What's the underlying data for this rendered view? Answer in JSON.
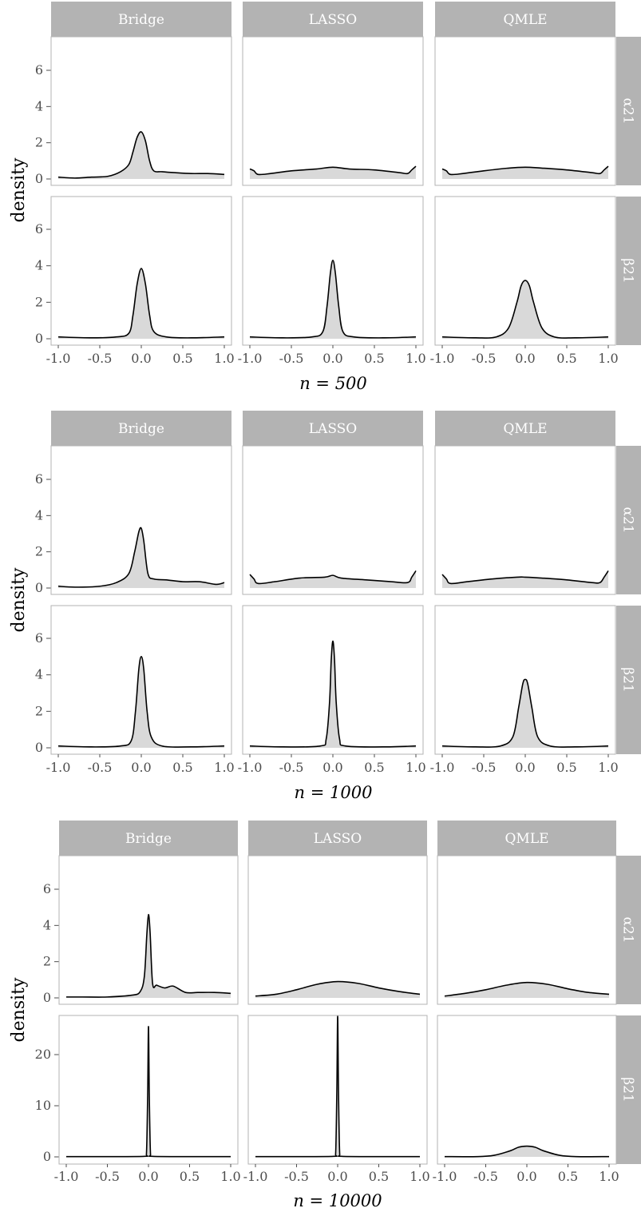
{
  "chart_data": [
    {
      "type": "area",
      "title": "",
      "xlabel": "n = 500",
      "ylabel": "density",
      "columns": [
        "Bridge",
        "LASSO",
        "QMLE"
      ],
      "rows": [
        "α21",
        "β21"
      ],
      "xlim": [
        -1.0,
        1.0
      ],
      "xticks": [
        "-1.0",
        "-0.5",
        "0.0",
        "0.5",
        "1.0"
      ],
      "row_ylims": [
        [
          0,
          7.8
        ],
        [
          0,
          7.8
        ]
      ],
      "row_yticks": [
        [
          "0",
          "2",
          "4",
          "6"
        ],
        [
          "0",
          "2",
          "4",
          "6"
        ]
      ],
      "panels": [
        {
          "column": "Bridge",
          "row": "α21",
          "x": [
            -1,
            -0.8,
            -0.6,
            -0.4,
            -0.25,
            -0.15,
            -0.1,
            -0.05,
            0,
            0.05,
            0.1,
            0.15,
            0.25,
            0.4,
            0.6,
            0.8,
            1
          ],
          "y": [
            0.1,
            0.05,
            0.1,
            0.15,
            0.4,
            0.8,
            1.5,
            2.3,
            2.6,
            2.1,
            1.0,
            0.45,
            0.4,
            0.35,
            0.3,
            0.3,
            0.25
          ]
        },
        {
          "column": "LASSO",
          "row": "α21",
          "x": [
            -1,
            -0.95,
            -0.9,
            -0.75,
            -0.5,
            -0.2,
            0,
            0.2,
            0.5,
            0.8,
            0.9,
            0.95,
            1
          ],
          "y": [
            0.55,
            0.45,
            0.25,
            0.3,
            0.45,
            0.55,
            0.65,
            0.55,
            0.5,
            0.35,
            0.3,
            0.5,
            0.7
          ]
        },
        {
          "column": "QMLE",
          "row": "α21",
          "x": [
            -1,
            -0.95,
            -0.9,
            -0.75,
            -0.5,
            -0.2,
            0,
            0.2,
            0.5,
            0.8,
            0.9,
            0.95,
            1
          ],
          "y": [
            0.55,
            0.45,
            0.25,
            0.3,
            0.45,
            0.6,
            0.65,
            0.6,
            0.5,
            0.35,
            0.3,
            0.5,
            0.7
          ]
        },
        {
          "column": "Bridge",
          "row": "β21",
          "x": [
            -1,
            -0.6,
            -0.3,
            -0.15,
            -0.1,
            -0.05,
            0,
            0.05,
            0.1,
            0.15,
            0.3,
            0.6,
            1
          ],
          "y": [
            0.1,
            0.05,
            0.1,
            0.3,
            1.3,
            3.0,
            3.85,
            3.0,
            1.3,
            0.4,
            0.1,
            0.05,
            0.1
          ]
        },
        {
          "column": "LASSO",
          "row": "β21",
          "x": [
            -1,
            -0.6,
            -0.25,
            -0.12,
            -0.07,
            -0.03,
            0,
            0.03,
            0.07,
            0.12,
            0.25,
            0.6,
            1
          ],
          "y": [
            0.1,
            0.05,
            0.1,
            0.4,
            1.8,
            3.6,
            4.3,
            3.6,
            1.8,
            0.4,
            0.1,
            0.05,
            0.1
          ]
        },
        {
          "column": "QMLE",
          "row": "β21",
          "x": [
            -1,
            -0.6,
            -0.35,
            -0.2,
            -0.1,
            -0.05,
            0,
            0.05,
            0.1,
            0.2,
            0.35,
            0.6,
            1
          ],
          "y": [
            0.1,
            0.05,
            0.1,
            0.6,
            2.0,
            2.9,
            3.2,
            2.9,
            2.0,
            0.6,
            0.1,
            0.05,
            0.1
          ]
        }
      ]
    },
    {
      "type": "area",
      "title": "",
      "xlabel": "n = 1000",
      "ylabel": "density",
      "columns": [
        "Bridge",
        "LASSO",
        "QMLE"
      ],
      "rows": [
        "α21",
        "β21"
      ],
      "xlim": [
        -1.0,
        1.0
      ],
      "xticks": [
        "-1.0",
        "-0.5",
        "0.0",
        "0.5",
        "1.0"
      ],
      "row_ylims": [
        [
          0,
          7.8
        ],
        [
          0,
          7.8
        ]
      ],
      "row_yticks": [
        [
          "0",
          "2",
          "4",
          "6"
        ],
        [
          "0",
          "2",
          "4",
          "6"
        ]
      ],
      "panels": [
        {
          "column": "Bridge",
          "row": "α21",
          "x": [
            -1,
            -0.8,
            -0.5,
            -0.3,
            -0.15,
            -0.08,
            -0.03,
            0,
            0.03,
            0.08,
            0.15,
            0.3,
            0.5,
            0.7,
            0.9,
            1
          ],
          "y": [
            0.1,
            0.05,
            0.1,
            0.3,
            0.8,
            2.0,
            3.1,
            3.3,
            2.6,
            0.8,
            0.5,
            0.45,
            0.35,
            0.35,
            0.2,
            0.3
          ]
        },
        {
          "column": "LASSO",
          "row": "α21",
          "x": [
            -1,
            -0.95,
            -0.9,
            -0.7,
            -0.4,
            -0.1,
            0,
            0.1,
            0.4,
            0.7,
            0.9,
            0.95,
            1
          ],
          "y": [
            0.75,
            0.5,
            0.25,
            0.35,
            0.55,
            0.6,
            0.7,
            0.55,
            0.45,
            0.35,
            0.3,
            0.6,
            0.95
          ]
        },
        {
          "column": "QMLE",
          "row": "α21",
          "x": [
            -1,
            -0.95,
            -0.9,
            -0.7,
            -0.4,
            -0.1,
            0,
            0.2,
            0.5,
            0.8,
            0.9,
            0.95,
            1
          ],
          "y": [
            0.75,
            0.5,
            0.25,
            0.35,
            0.5,
            0.6,
            0.6,
            0.55,
            0.45,
            0.3,
            0.3,
            0.6,
            0.95
          ]
        },
        {
          "column": "Bridge",
          "row": "β21",
          "x": [
            -1,
            -0.6,
            -0.25,
            -0.12,
            -0.07,
            -0.03,
            0,
            0.03,
            0.07,
            0.12,
            0.25,
            0.6,
            1
          ],
          "y": [
            0.1,
            0.05,
            0.1,
            0.4,
            2.0,
            4.3,
            5.0,
            4.3,
            2.0,
            0.6,
            0.1,
            0.05,
            0.1
          ]
        },
        {
          "column": "LASSO",
          "row": "β21",
          "x": [
            -1,
            -0.6,
            -0.15,
            -0.08,
            -0.04,
            -0.02,
            0,
            0.02,
            0.04,
            0.08,
            0.15,
            0.6,
            1
          ],
          "y": [
            0.1,
            0.05,
            0.1,
            0.5,
            2.5,
            4.8,
            5.85,
            4.8,
            2.5,
            0.5,
            0.1,
            0.05,
            0.1
          ]
        },
        {
          "column": "QMLE",
          "row": "β21",
          "x": [
            -1,
            -0.6,
            -0.3,
            -0.15,
            -0.08,
            -0.03,
            0,
            0.03,
            0.08,
            0.15,
            0.3,
            0.6,
            1
          ],
          "y": [
            0.1,
            0.05,
            0.1,
            0.6,
            2.2,
            3.5,
            3.75,
            3.5,
            2.2,
            0.6,
            0.1,
            0.05,
            0.1
          ]
        }
      ]
    },
    {
      "type": "area",
      "title": "",
      "xlabel": "n = 10000",
      "ylabel": "density",
      "columns": [
        "Bridge",
        "LASSO",
        "QMLE"
      ],
      "rows": [
        "α21",
        "β21"
      ],
      "xlim": [
        -1.0,
        1.0
      ],
      "xticks": [
        "-1.0",
        "-0.5",
        "0.0",
        "0.5",
        "1.0"
      ],
      "row_ylims": [
        [
          0,
          7.8
        ],
        [
          0,
          29
        ]
      ],
      "row_yticks": [
        [
          "0",
          "2",
          "4",
          "6"
        ],
        [
          "0",
          "10",
          "20"
        ]
      ],
      "panels": [
        {
          "column": "Bridge",
          "row": "α21",
          "x": [
            -1,
            -0.8,
            -0.5,
            -0.2,
            -0.1,
            -0.05,
            -0.02,
            0,
            0.02,
            0.05,
            0.1,
            0.2,
            0.3,
            0.45,
            0.6,
            0.8,
            1
          ],
          "y": [
            0.05,
            0.05,
            0.05,
            0.15,
            0.35,
            1.2,
            3.5,
            4.6,
            3.6,
            0.8,
            0.7,
            0.55,
            0.65,
            0.3,
            0.3,
            0.3,
            0.25
          ]
        },
        {
          "column": "LASSO",
          "row": "α21",
          "x": [
            -1,
            -0.75,
            -0.5,
            -0.25,
            0,
            0.25,
            0.5,
            0.75,
            1
          ],
          "y": [
            0.1,
            0.2,
            0.45,
            0.75,
            0.9,
            0.8,
            0.55,
            0.35,
            0.2
          ]
        },
        {
          "column": "QMLE",
          "row": "α21",
          "x": [
            -1,
            -0.75,
            -0.5,
            -0.25,
            0,
            0.25,
            0.5,
            0.75,
            1
          ],
          "y": [
            0.1,
            0.25,
            0.45,
            0.7,
            0.85,
            0.75,
            0.5,
            0.3,
            0.2
          ]
        },
        {
          "column": "Bridge",
          "row": "β21",
          "x": [
            -1,
            -0.5,
            -0.05,
            -0.025,
            -0.01,
            0,
            0.01,
            0.025,
            0.05,
            0.5,
            1
          ],
          "y": [
            0.05,
            0.05,
            0.1,
            0.5,
            12,
            25.5,
            12,
            0.5,
            0.1,
            0.05,
            0.05
          ]
        },
        {
          "column": "LASSO",
          "row": "β21",
          "x": [
            -1,
            -0.5,
            -0.05,
            -0.025,
            -0.01,
            0,
            0.01,
            0.025,
            0.05,
            0.5,
            1
          ],
          "y": [
            0.05,
            0.05,
            0.1,
            0.5,
            13,
            27.5,
            13,
            0.5,
            0.1,
            0.05,
            0.05
          ]
        },
        {
          "column": "QMLE",
          "row": "β21",
          "x": [
            -1,
            -0.6,
            -0.4,
            -0.2,
            -0.1,
            0,
            0.1,
            0.2,
            0.4,
            0.6,
            1
          ],
          "y": [
            0.05,
            0.05,
            0.3,
            1.2,
            1.9,
            2.1,
            1.9,
            1.2,
            0.3,
            0.05,
            0.05
          ]
        }
      ]
    }
  ]
}
